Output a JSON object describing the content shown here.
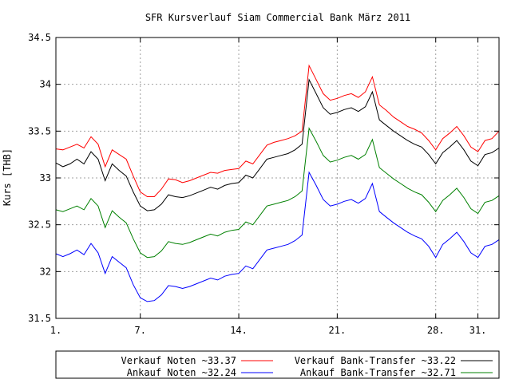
{
  "chart_data": {
    "type": "line",
    "title": "SFR Kursverlauf Siam Commercial Bank März 2011",
    "xlabel": "",
    "ylabel": "Kurs [THB]",
    "xlim": [
      1,
      32.5
    ],
    "ylim": [
      31.5,
      34.5
    ],
    "grid": true,
    "legend_placement": "bottom",
    "x_ticks": [
      {
        "value": 1,
        "label": "1."
      },
      {
        "value": 7,
        "label": "7."
      },
      {
        "value": 14,
        "label": "14."
      },
      {
        "value": 21,
        "label": "21."
      },
      {
        "value": 28,
        "label": "28."
      },
      {
        "value": 31,
        "label": "31."
      }
    ],
    "y_ticks": [
      {
        "value": 31.5,
        "label": "31.5"
      },
      {
        "value": 32,
        "label": "32"
      },
      {
        "value": 32.5,
        "label": "32.5"
      },
      {
        "value": 33,
        "label": "33"
      },
      {
        "value": 33.5,
        "label": "33.5"
      },
      {
        "value": 34,
        "label": "34"
      },
      {
        "value": 34.5,
        "label": "34.5"
      }
    ],
    "x": [
      1,
      1.5,
      2,
      2.5,
      3,
      3.5,
      4,
      4.5,
      5,
      5.5,
      6,
      6.5,
      7,
      7.5,
      8,
      8.5,
      9,
      9.5,
      10,
      10.5,
      11,
      11.5,
      12,
      12.5,
      13,
      13.5,
      14,
      14.5,
      15,
      15.5,
      16,
      16.5,
      17,
      17.5,
      18,
      18.5,
      19,
      19.5,
      20,
      20.5,
      21,
      21.5,
      22,
      22.5,
      23,
      23.5,
      24,
      24.5,
      25,
      25.5,
      26,
      26.5,
      27,
      27.5,
      28,
      28.5,
      29,
      29.5,
      30,
      30.5,
      31,
      31.5,
      32,
      32.5
    ],
    "series": [
      {
        "name": "Verkauf Noten ~33.37",
        "color": "#ff0000",
        "values": [
          33.31,
          33.3,
          33.33,
          33.36,
          33.32,
          33.44,
          33.36,
          33.12,
          33.3,
          33.25,
          33.2,
          33.02,
          32.85,
          32.8,
          32.8,
          32.88,
          32.99,
          32.98,
          32.95,
          32.97,
          33,
          33.03,
          33.06,
          33.05,
          33.08,
          33.09,
          33.1,
          33.18,
          33.15,
          33.25,
          33.35,
          33.38,
          33.4,
          33.42,
          33.45,
          33.5,
          34.2,
          34.05,
          33.9,
          33.83,
          33.85,
          33.88,
          33.9,
          33.86,
          33.92,
          34.08,
          33.78,
          33.72,
          33.65,
          33.6,
          33.55,
          33.52,
          33.48,
          33.4,
          33.3,
          33.42,
          33.48,
          33.55,
          33.45,
          33.33,
          33.28,
          33.4,
          33.42,
          33.5
        ]
      },
      {
        "name": "Verkauf Bank-Transfer ~33.22",
        "color": "#000000",
        "values": [
          33.16,
          33.12,
          33.15,
          33.2,
          33.15,
          33.28,
          33.2,
          32.97,
          33.15,
          33.08,
          33.02,
          32.85,
          32.7,
          32.65,
          32.66,
          32.72,
          32.82,
          32.8,
          32.79,
          32.81,
          32.84,
          32.87,
          32.9,
          32.88,
          32.92,
          32.94,
          32.95,
          33.03,
          33,
          33.1,
          33.2,
          33.22,
          33.24,
          33.26,
          33.3,
          33.36,
          34.05,
          33.9,
          33.75,
          33.68,
          33.7,
          33.73,
          33.75,
          33.71,
          33.76,
          33.92,
          33.62,
          33.56,
          33.5,
          33.45,
          33.4,
          33.36,
          33.33,
          33.25,
          33.15,
          33.27,
          33.33,
          33.4,
          33.3,
          33.18,
          33.13,
          33.25,
          33.27,
          33.32
        ]
      },
      {
        "name": "Ankauf Bank-Transfer ~32.71",
        "color": "#008000",
        "values": [
          32.66,
          32.64,
          32.67,
          32.7,
          32.66,
          32.78,
          32.7,
          32.47,
          32.65,
          32.58,
          32.52,
          32.35,
          32.2,
          32.15,
          32.16,
          32.22,
          32.32,
          32.3,
          32.29,
          32.31,
          32.34,
          32.37,
          32.4,
          32.38,
          32.42,
          32.44,
          32.45,
          32.53,
          32.5,
          32.6,
          32.7,
          32.72,
          32.74,
          32.76,
          32.8,
          32.86,
          33.53,
          33.39,
          33.24,
          33.17,
          33.19,
          33.22,
          33.24,
          33.2,
          33.25,
          33.41,
          33.11,
          33.05,
          32.99,
          32.94,
          32.89,
          32.85,
          32.82,
          32.74,
          32.64,
          32.76,
          32.82,
          32.89,
          32.79,
          32.67,
          32.62,
          32.74,
          32.76,
          32.81
        ]
      },
      {
        "name": "Ankauf Noten ~32.24",
        "color": "#0000ff",
        "values": [
          32.19,
          32.16,
          32.19,
          32.23,
          32.18,
          32.3,
          32.2,
          31.98,
          32.16,
          32.1,
          32.04,
          31.86,
          31.72,
          31.68,
          31.69,
          31.75,
          31.85,
          31.84,
          31.82,
          31.84,
          31.87,
          31.9,
          31.93,
          31.91,
          31.95,
          31.97,
          31.98,
          32.06,
          32.03,
          32.13,
          32.23,
          32.25,
          32.27,
          32.29,
          32.33,
          32.39,
          33.06,
          32.92,
          32.77,
          32.7,
          32.72,
          32.75,
          32.77,
          32.73,
          32.78,
          32.94,
          32.64,
          32.58,
          32.52,
          32.47,
          32.42,
          32.38,
          32.35,
          32.27,
          32.15,
          32.29,
          32.35,
          32.42,
          32.32,
          32.2,
          32.15,
          32.27,
          32.29,
          32.34
        ]
      }
    ]
  }
}
